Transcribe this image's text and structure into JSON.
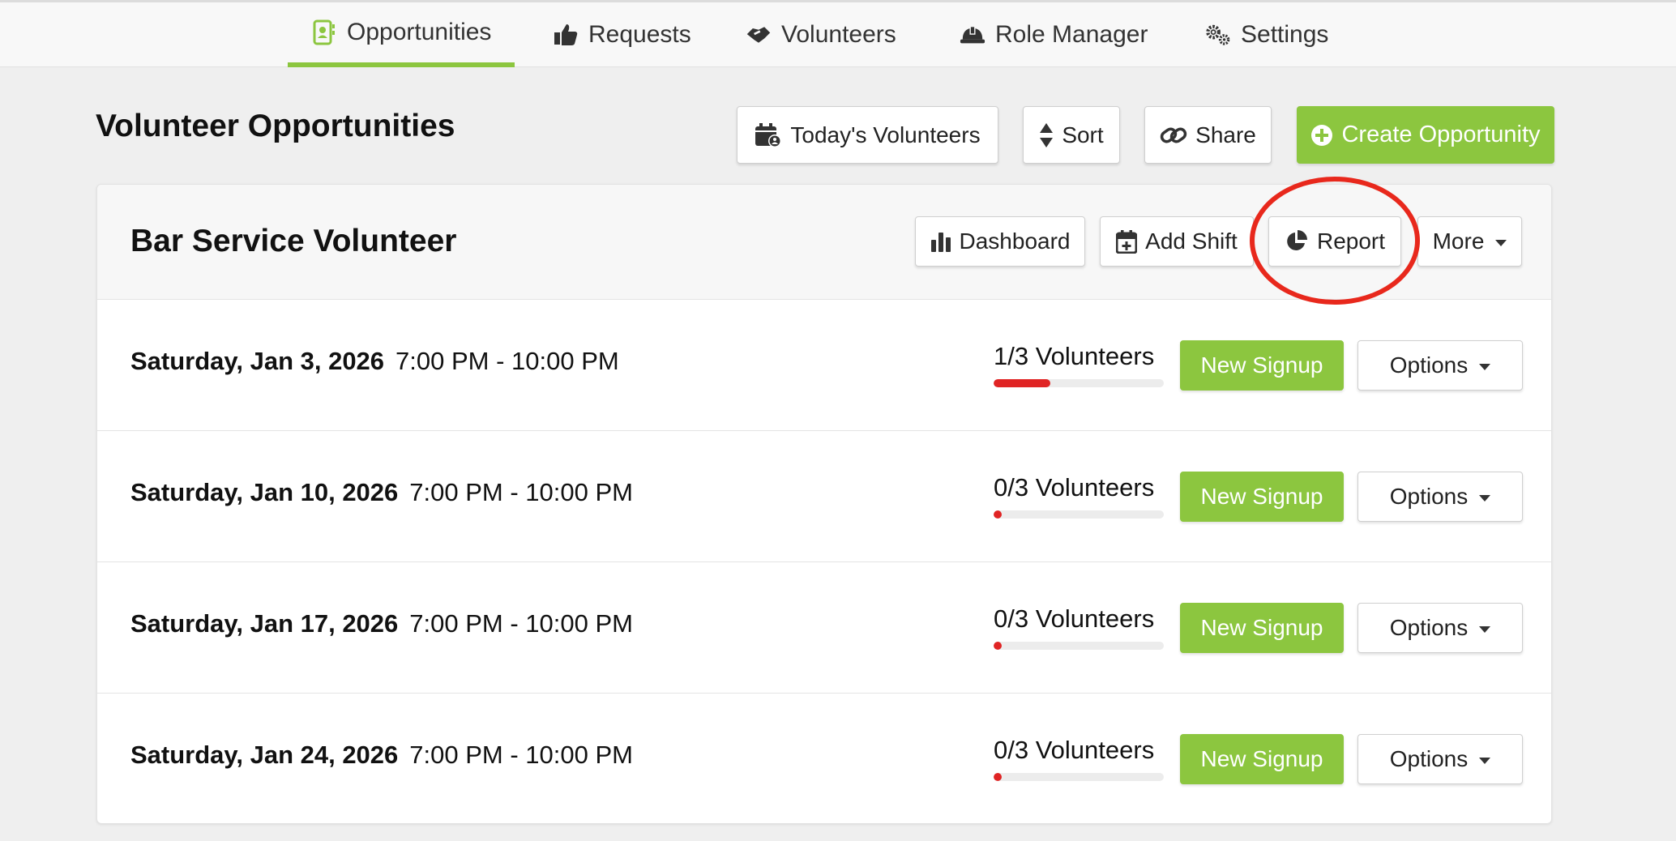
{
  "nav": {
    "tabs": [
      {
        "label": "Opportunities",
        "icon": "contact-book-icon",
        "active": true
      },
      {
        "label": "Requests",
        "icon": "thumbs-up-icon",
        "active": false
      },
      {
        "label": "Volunteers",
        "icon": "handshake-icon",
        "active": false
      },
      {
        "label": "Role Manager",
        "icon": "hard-hat-icon",
        "active": false
      },
      {
        "label": "Settings",
        "icon": "gears-icon",
        "active": false
      }
    ]
  },
  "page": {
    "title": "Volunteer Opportunities",
    "actions": {
      "todays_volunteers": "Today's Volunteers",
      "sort": "Sort",
      "share": "Share",
      "create": "Create Opportunity"
    }
  },
  "opportunity": {
    "title": "Bar Service Volunteer",
    "actions": {
      "dashboard": "Dashboard",
      "add_shift": "Add Shift",
      "report": "Report",
      "more": "More"
    },
    "shifts": [
      {
        "date": "Saturday, Jan 3, 2026",
        "time": "7:00 PM - 10:00 PM",
        "volunteers": "1/3 Volunteers",
        "fill": 0.333,
        "signup": "New Signup",
        "options": "Options"
      },
      {
        "date": "Saturday, Jan 10, 2026",
        "time": "7:00 PM - 10:00 PM",
        "volunteers": "0/3 Volunteers",
        "fill": 0,
        "signup": "New Signup",
        "options": "Options"
      },
      {
        "date": "Saturday, Jan 17, 2026",
        "time": "7:00 PM - 10:00 PM",
        "volunteers": "0/3 Volunteers",
        "fill": 0,
        "signup": "New Signup",
        "options": "Options"
      },
      {
        "date": "Saturday, Jan 24, 2026",
        "time": "7:00 PM - 10:00 PM",
        "volunteers": "0/3 Volunteers",
        "fill": 0,
        "signup": "New Signup",
        "options": "Options"
      }
    ]
  },
  "colors": {
    "accent_green": "#8cc63f",
    "progress_red": "#e02424",
    "annotation_red": "#e8281c"
  }
}
